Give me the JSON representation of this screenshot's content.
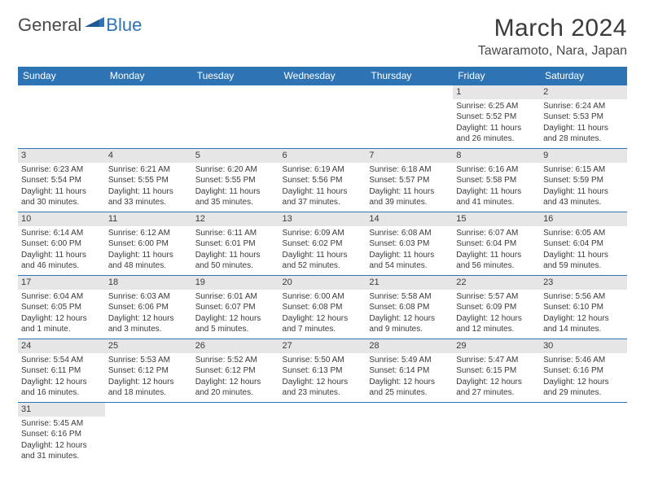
{
  "logo": {
    "text1": "General",
    "text2": "Blue",
    "color1": "#4a4a4a",
    "color2": "#2e74b5"
  },
  "title": "March 2024",
  "location": "Tawaramoto, Nara, Japan",
  "header_bg": "#2e74b5",
  "header_fg": "#ffffff",
  "daynum_bg": "#e6e6e6",
  "border_color": "#2e74b5",
  "weekdays": [
    "Sunday",
    "Monday",
    "Tuesday",
    "Wednesday",
    "Thursday",
    "Friday",
    "Saturday"
  ],
  "weeks": [
    [
      null,
      null,
      null,
      null,
      null,
      {
        "n": "1",
        "sr": "Sunrise: 6:25 AM",
        "ss": "Sunset: 5:52 PM",
        "dl1": "Daylight: 11 hours",
        "dl2": "and 26 minutes."
      },
      {
        "n": "2",
        "sr": "Sunrise: 6:24 AM",
        "ss": "Sunset: 5:53 PM",
        "dl1": "Daylight: 11 hours",
        "dl2": "and 28 minutes."
      }
    ],
    [
      {
        "n": "3",
        "sr": "Sunrise: 6:23 AM",
        "ss": "Sunset: 5:54 PM",
        "dl1": "Daylight: 11 hours",
        "dl2": "and 30 minutes."
      },
      {
        "n": "4",
        "sr": "Sunrise: 6:21 AM",
        "ss": "Sunset: 5:55 PM",
        "dl1": "Daylight: 11 hours",
        "dl2": "and 33 minutes."
      },
      {
        "n": "5",
        "sr": "Sunrise: 6:20 AM",
        "ss": "Sunset: 5:55 PM",
        "dl1": "Daylight: 11 hours",
        "dl2": "and 35 minutes."
      },
      {
        "n": "6",
        "sr": "Sunrise: 6:19 AM",
        "ss": "Sunset: 5:56 PM",
        "dl1": "Daylight: 11 hours",
        "dl2": "and 37 minutes."
      },
      {
        "n": "7",
        "sr": "Sunrise: 6:18 AM",
        "ss": "Sunset: 5:57 PM",
        "dl1": "Daylight: 11 hours",
        "dl2": "and 39 minutes."
      },
      {
        "n": "8",
        "sr": "Sunrise: 6:16 AM",
        "ss": "Sunset: 5:58 PM",
        "dl1": "Daylight: 11 hours",
        "dl2": "and 41 minutes."
      },
      {
        "n": "9",
        "sr": "Sunrise: 6:15 AM",
        "ss": "Sunset: 5:59 PM",
        "dl1": "Daylight: 11 hours",
        "dl2": "and 43 minutes."
      }
    ],
    [
      {
        "n": "10",
        "sr": "Sunrise: 6:14 AM",
        "ss": "Sunset: 6:00 PM",
        "dl1": "Daylight: 11 hours",
        "dl2": "and 46 minutes."
      },
      {
        "n": "11",
        "sr": "Sunrise: 6:12 AM",
        "ss": "Sunset: 6:00 PM",
        "dl1": "Daylight: 11 hours",
        "dl2": "and 48 minutes."
      },
      {
        "n": "12",
        "sr": "Sunrise: 6:11 AM",
        "ss": "Sunset: 6:01 PM",
        "dl1": "Daylight: 11 hours",
        "dl2": "and 50 minutes."
      },
      {
        "n": "13",
        "sr": "Sunrise: 6:09 AM",
        "ss": "Sunset: 6:02 PM",
        "dl1": "Daylight: 11 hours",
        "dl2": "and 52 minutes."
      },
      {
        "n": "14",
        "sr": "Sunrise: 6:08 AM",
        "ss": "Sunset: 6:03 PM",
        "dl1": "Daylight: 11 hours",
        "dl2": "and 54 minutes."
      },
      {
        "n": "15",
        "sr": "Sunrise: 6:07 AM",
        "ss": "Sunset: 6:04 PM",
        "dl1": "Daylight: 11 hours",
        "dl2": "and 56 minutes."
      },
      {
        "n": "16",
        "sr": "Sunrise: 6:05 AM",
        "ss": "Sunset: 6:04 PM",
        "dl1": "Daylight: 11 hours",
        "dl2": "and 59 minutes."
      }
    ],
    [
      {
        "n": "17",
        "sr": "Sunrise: 6:04 AM",
        "ss": "Sunset: 6:05 PM",
        "dl1": "Daylight: 12 hours",
        "dl2": "and 1 minute."
      },
      {
        "n": "18",
        "sr": "Sunrise: 6:03 AM",
        "ss": "Sunset: 6:06 PM",
        "dl1": "Daylight: 12 hours",
        "dl2": "and 3 minutes."
      },
      {
        "n": "19",
        "sr": "Sunrise: 6:01 AM",
        "ss": "Sunset: 6:07 PM",
        "dl1": "Daylight: 12 hours",
        "dl2": "and 5 minutes."
      },
      {
        "n": "20",
        "sr": "Sunrise: 6:00 AM",
        "ss": "Sunset: 6:08 PM",
        "dl1": "Daylight: 12 hours",
        "dl2": "and 7 minutes."
      },
      {
        "n": "21",
        "sr": "Sunrise: 5:58 AM",
        "ss": "Sunset: 6:08 PM",
        "dl1": "Daylight: 12 hours",
        "dl2": "and 9 minutes."
      },
      {
        "n": "22",
        "sr": "Sunrise: 5:57 AM",
        "ss": "Sunset: 6:09 PM",
        "dl1": "Daylight: 12 hours",
        "dl2": "and 12 minutes."
      },
      {
        "n": "23",
        "sr": "Sunrise: 5:56 AM",
        "ss": "Sunset: 6:10 PM",
        "dl1": "Daylight: 12 hours",
        "dl2": "and 14 minutes."
      }
    ],
    [
      {
        "n": "24",
        "sr": "Sunrise: 5:54 AM",
        "ss": "Sunset: 6:11 PM",
        "dl1": "Daylight: 12 hours",
        "dl2": "and 16 minutes."
      },
      {
        "n": "25",
        "sr": "Sunrise: 5:53 AM",
        "ss": "Sunset: 6:12 PM",
        "dl1": "Daylight: 12 hours",
        "dl2": "and 18 minutes."
      },
      {
        "n": "26",
        "sr": "Sunrise: 5:52 AM",
        "ss": "Sunset: 6:12 PM",
        "dl1": "Daylight: 12 hours",
        "dl2": "and 20 minutes."
      },
      {
        "n": "27",
        "sr": "Sunrise: 5:50 AM",
        "ss": "Sunset: 6:13 PM",
        "dl1": "Daylight: 12 hours",
        "dl2": "and 23 minutes."
      },
      {
        "n": "28",
        "sr": "Sunrise: 5:49 AM",
        "ss": "Sunset: 6:14 PM",
        "dl1": "Daylight: 12 hours",
        "dl2": "and 25 minutes."
      },
      {
        "n": "29",
        "sr": "Sunrise: 5:47 AM",
        "ss": "Sunset: 6:15 PM",
        "dl1": "Daylight: 12 hours",
        "dl2": "and 27 minutes."
      },
      {
        "n": "30",
        "sr": "Sunrise: 5:46 AM",
        "ss": "Sunset: 6:16 PM",
        "dl1": "Daylight: 12 hours",
        "dl2": "and 29 minutes."
      }
    ],
    [
      {
        "n": "31",
        "sr": "Sunrise: 5:45 AM",
        "ss": "Sunset: 6:16 PM",
        "dl1": "Daylight: 12 hours",
        "dl2": "and 31 minutes."
      },
      null,
      null,
      null,
      null,
      null,
      null
    ]
  ]
}
